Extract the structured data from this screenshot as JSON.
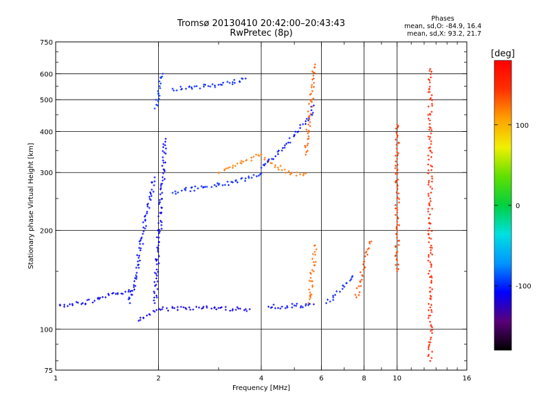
{
  "header": {
    "title": "Tromsø 20130410 20:42:00–20:43:43",
    "subtitle": "RwPretec (8p)"
  },
  "stats": {
    "heading": "Phases",
    "line_o": "mean, sd,O: -84.9, 16.4",
    "line_x": "mean, sd,X:  93.2, 21.7"
  },
  "colorbar": {
    "label": "[deg]",
    "ticks": [
      "100",
      "0",
      "-100"
    ],
    "tick_values": [
      100,
      0,
      -100
    ],
    "range": [
      -180,
      180
    ],
    "colormap": "rainbow",
    "colors": [
      "#000000",
      "#5a007a",
      "#0000ff",
      "#0096ff",
      "#00e0e0",
      "#00d040",
      "#60e000",
      "#f0f000",
      "#ffa000",
      "#ff3000",
      "#ff0000"
    ]
  },
  "chart_data": {
    "type": "scatter",
    "title": "Tromsø 20130410 20:42:00–20:43:43",
    "subtitle": "RwPretec (8p)",
    "xlabel": "Frequency [MHz]",
    "ylabel": "Stationary phase Virtual Height [km]",
    "xscale": "log",
    "yscale": "log",
    "xlim": [
      1,
      16
    ],
    "ylim": [
      75,
      750
    ],
    "xticks": [
      1,
      2,
      4,
      6,
      8,
      10,
      16
    ],
    "xtick_labels": [
      "1",
      "2",
      "4",
      "6",
      "8",
      "10",
      "16"
    ],
    "yticks": [
      75,
      100,
      200,
      300,
      400,
      500,
      600,
      750
    ],
    "ytick_labels": [
      "75",
      "100",
      "200",
      "300",
      "400",
      "500",
      "600",
      "750"
    ],
    "x_gridlines": [
      2,
      4,
      6,
      8,
      10
    ],
    "y_gridlines": [
      100,
      200,
      300,
      400,
      500,
      600
    ],
    "grid": true,
    "color_variable": "Phase [deg]",
    "series": [
      {
        "x": [
          1.75,
          1.85,
          1.95,
          2.05,
          2.2,
          2.4,
          2.7,
          3.0,
          3.3,
          3.6,
          3.7
        ],
        "y": [
          106,
          110,
          113,
          115,
          116,
          116,
          116,
          116,
          115,
          115,
          115
        ],
        "phase": -115
      },
      {
        "x": [
          1.03,
          1.1,
          1.2,
          1.3,
          1.4,
          1.5,
          1.6,
          1.7
        ],
        "y": [
          118,
          119,
          120,
          122,
          125,
          128,
          130,
          132
        ],
        "phase": -110
      },
      {
        "x": [
          1.65,
          1.7,
          1.75,
          1.8,
          1.85,
          1.9,
          1.95
        ],
        "y": [
          120,
          140,
          165,
          195,
          225,
          258,
          290
        ],
        "phase": -105
      },
      {
        "x": [
          1.95,
          2.0,
          2.05,
          2.1
        ],
        "y": [
          120,
          180,
          260,
          380
        ],
        "phase": -110
      },
      {
        "x": [
          1.95,
          2.0,
          2.03,
          2.06
        ],
        "y": [
          470,
          520,
          560,
          600
        ],
        "phase": -95
      },
      {
        "x": [
          2.2,
          2.4,
          2.7,
          3.0,
          3.3,
          3.6,
          4.0
        ],
        "y": [
          260,
          265,
          270,
          275,
          280,
          288,
          298
        ],
        "phase": -100
      },
      {
        "x": [
          3.0,
          3.3,
          3.5,
          3.8,
          4.0,
          4.3,
          4.6,
          4.9,
          5.2,
          5.4
        ],
        "y": [
          300,
          310,
          320,
          335,
          340,
          320,
          305,
          298,
          296,
          298
        ],
        "phase": 120
      },
      {
        "x": [
          4.0,
          4.3,
          4.6,
          4.8,
          5.0,
          5.2,
          5.4,
          5.6,
          5.7
        ],
        "y": [
          310,
          330,
          350,
          370,
          390,
          410,
          430,
          450,
          480
        ],
        "phase": -105
      },
      {
        "x": [
          5.4,
          5.5,
          5.6,
          5.7,
          5.75
        ],
        "y": [
          340,
          420,
          500,
          580,
          640
        ],
        "phase": 130
      },
      {
        "x": [
          2.2,
          2.5,
          2.8,
          3.0,
          3.3,
          3.6
        ],
        "y": [
          540,
          545,
          550,
          555,
          565,
          580
        ],
        "phase": -100
      },
      {
        "x": [
          4.2,
          4.6,
          5.0,
          5.4,
          5.7
        ],
        "y": [
          117,
          117,
          118,
          118,
          119
        ],
        "phase": -105
      },
      {
        "x": [
          5.5,
          5.6,
          5.7,
          5.75
        ],
        "y": [
          120,
          140,
          160,
          180
        ],
        "phase": 125
      },
      {
        "x": [
          6.2,
          6.5,
          6.8,
          7.1,
          7.4
        ],
        "y": [
          120,
          125,
          130,
          138,
          145
        ],
        "phase": -100
      },
      {
        "x": [
          7.6,
          7.8,
          8.0,
          8.2,
          8.4
        ],
        "y": [
          125,
          140,
          160,
          175,
          185
        ],
        "phase": 135
      },
      {
        "x": [
          12.5,
          12.5,
          12.5,
          12.5,
          12.5,
          12.5,
          12.5
        ],
        "y": [
          80,
          110,
          160,
          250,
          350,
          450,
          620
        ],
        "phase": 150
      },
      {
        "x": [
          10.0,
          10.0,
          10.0,
          10.0
        ],
        "y": [
          150,
          250,
          330,
          420
        ],
        "phase": 140
      }
    ]
  }
}
